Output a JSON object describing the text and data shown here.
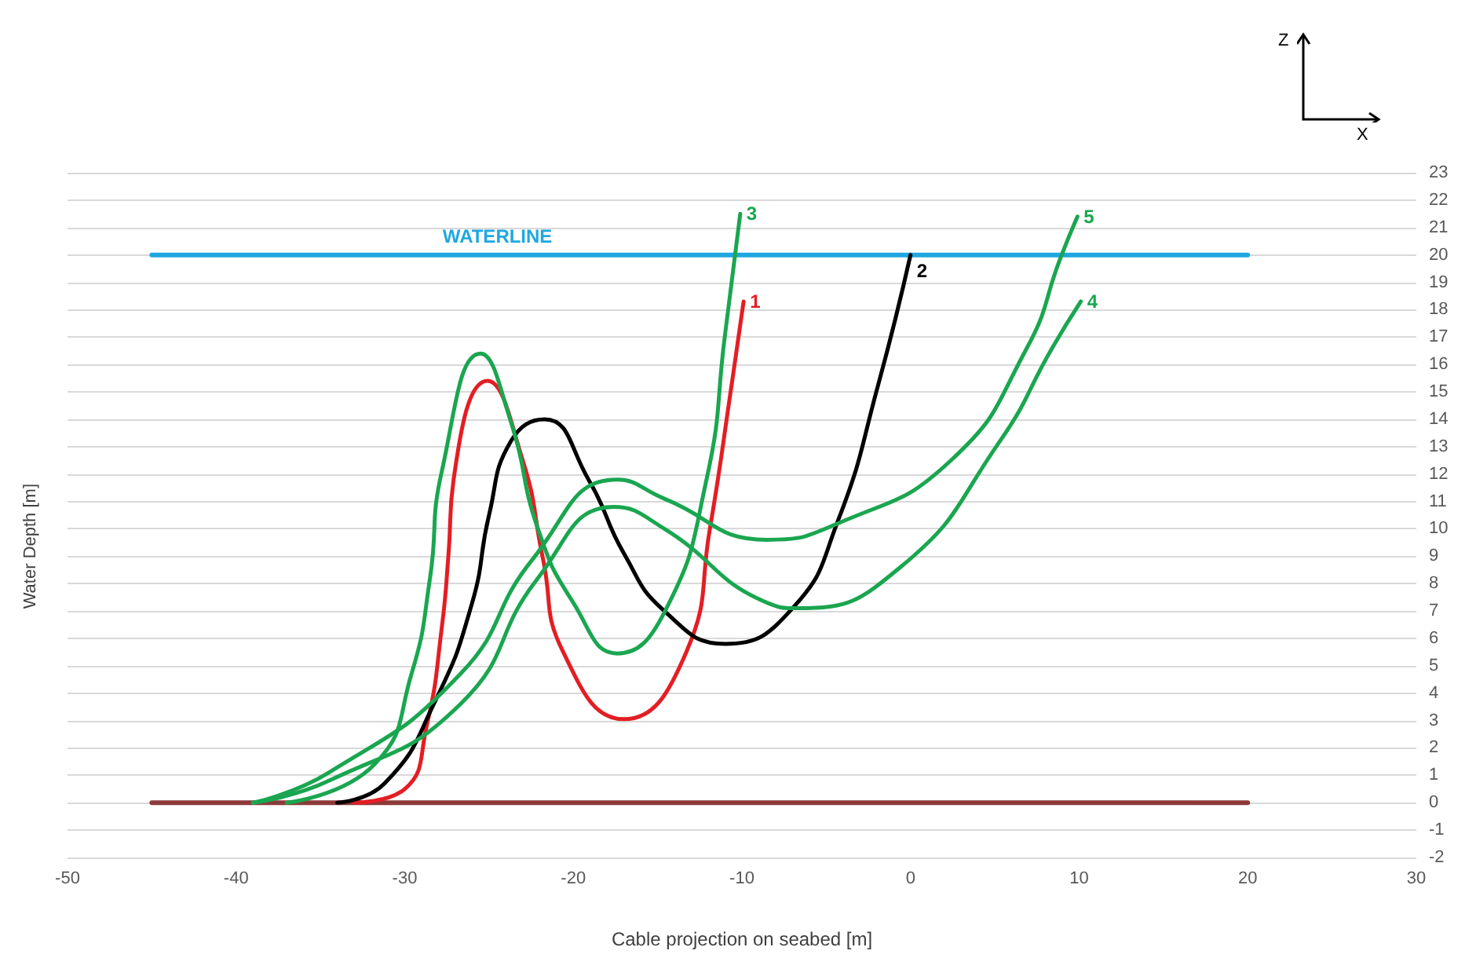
{
  "chart_data": {
    "type": "line",
    "xlabel": "Cable projection on seabed [m]",
    "ylabel": "Water Depth [m]",
    "xlim": [
      -50,
      30
    ],
    "xticks": [
      -50,
      -40,
      -30,
      -20,
      -10,
      0,
      10,
      20,
      30
    ],
    "ylim": [
      -2,
      23
    ],
    "yticks": [
      -2,
      -1,
      0,
      1,
      2,
      3,
      4,
      5,
      6,
      7,
      8,
      9,
      10,
      11,
      12,
      13,
      14,
      15,
      16,
      17,
      18,
      19,
      20,
      21,
      22,
      23
    ],
    "grid": "y",
    "legend": false,
    "marker": "none",
    "line_style": "solid",
    "annotations": [
      "Z",
      "X"
    ],
    "series": [
      {
        "name": "WATERLINE",
        "color": "#1fa8e0",
        "x": [
          -45,
          20
        ],
        "values": [
          20,
          20
        ]
      },
      {
        "color": "#8b3a3a",
        "x": [
          -45,
          20
        ],
        "values": [
          0,
          0
        ]
      },
      {
        "name": "1",
        "color": "#e31e24",
        "x": [
          -33,
          -30,
          -28.7,
          -27.8,
          -27.4,
          -27.1,
          -25.1,
          -23,
          -21.8,
          -20.6,
          -17,
          -13.3,
          -11.9,
          -10.6,
          -9.9
        ],
        "values": [
          0,
          0.5,
          2.8,
          6.4,
          9.1,
          11.8,
          15.4,
          12.5,
          8.9,
          5.5,
          3.05,
          5.5,
          10,
          15.3,
          18.3
        ]
      },
      {
        "name": "2",
        "color": "#000000",
        "x": [
          -34,
          -31.2,
          -28.2,
          -26,
          -25,
          -23.7,
          -21.7,
          -19.1,
          -17,
          -14.6,
          -11,
          -7,
          -4.3,
          -1.9,
          0
        ],
        "values": [
          0,
          0.7,
          3.7,
          7.3,
          10.5,
          13.2,
          14,
          11.8,
          9.1,
          7,
          5.8,
          7.1,
          10.3,
          15.3,
          20
        ]
      },
      {
        "name": "3",
        "color": "#1aa650",
        "x": [
          -37,
          -31.8,
          -29.6,
          -28.5,
          -27.8,
          -25.5,
          -23.7,
          -22.1,
          -20,
          -17.4,
          -14.6,
          -12.1,
          -11,
          -10.1
        ],
        "values": [
          0,
          1.4,
          4.7,
          8.2,
          12.1,
          16.4,
          13.9,
          10,
          7.3,
          5.45,
          6.95,
          11.8,
          17.1,
          21.5
        ]
      },
      {
        "name": "4",
        "color": "#1aa650",
        "x": [
          -39,
          -34.5,
          -26.7,
          -22.1,
          -17.6,
          -14.6,
          -8.5,
          -6.7,
          -0.6,
          5.3,
          8.4,
          10.1
        ],
        "values": [
          0,
          0.8,
          3.6,
          8.2,
          10.8,
          10,
          7.3,
          7.1,
          8.6,
          13.2,
          16.6,
          18.3
        ]
      },
      {
        "name": "5",
        "color": "#1aa650",
        "x": [
          -39,
          -34.5,
          -26.7,
          -22.4,
          -17.4,
          -14.6,
          -8.5,
          -4.3,
          2.4,
          6.9,
          8.9,
          9.9
        ],
        "values": [
          0,
          1.1,
          4.7,
          8.9,
          11.8,
          11.1,
          9.6,
          10.2,
          12.5,
          16.6,
          19.9,
          21.4
        ]
      }
    ]
  }
}
